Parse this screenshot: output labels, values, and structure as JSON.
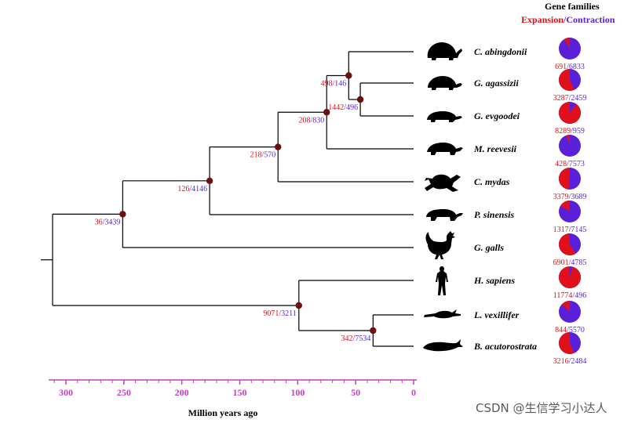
{
  "header": {
    "title": "Gene families",
    "expansion": "Expansion",
    "slash": "/",
    "contraction": "Contraction"
  },
  "colors": {
    "expansion": "#e0101a",
    "contraction": "#5a1fd8",
    "branch": "#000000",
    "node": "#6b0f0f",
    "axis": "#c33fc3"
  },
  "species": [
    {
      "name": "C.  abingdonii",
      "icon": "tortoise-silhouette",
      "exp": "691",
      "con": "6833",
      "pie_exp": 0.09
    },
    {
      "name": "G. agassizii",
      "icon": "desert-tortoise-silhouette",
      "exp": "3287",
      "con": "2459",
      "pie_exp": 0.57
    },
    {
      "name": "G. evgoodei",
      "icon": "flat-turtle-silhouette",
      "exp": "8289",
      "con": "959",
      "pie_exp": 0.9
    },
    {
      "name": "M. reevesii",
      "icon": "pond-turtle-silhouette",
      "exp": "428",
      "con": "7573",
      "pie_exp": 0.05
    },
    {
      "name": "C. mydas",
      "icon": "sea-turtle-silhouette",
      "exp": "3379",
      "con": "3689",
      "pie_exp": 0.48
    },
    {
      "name": "P. sinensis",
      "icon": "softshell-turtle-silhouette",
      "exp": "1317",
      "con": "7145",
      "pie_exp": 0.16
    },
    {
      "name": "G. galls",
      "icon": "rooster-silhouette",
      "exp": "6901",
      "con": "4785",
      "pie_exp": 0.59
    },
    {
      "name": "H. sapiens",
      "icon": "human-silhouette",
      "exp": "11774",
      "con": "496",
      "pie_exp": 0.96
    },
    {
      "name": "L. vexillifer",
      "icon": "river-dolphin-silhouette",
      "exp": "844",
      "con": "5570",
      "pie_exp": 0.13
    },
    {
      "name": "B. acutorostrata",
      "icon": "minke-whale-silhouette",
      "exp": "3216",
      "con": "2484",
      "pie_exp": 0.56
    }
  ],
  "nodes": [
    {
      "id": "n-abingdonii-gopherus",
      "age": 56,
      "exp": "498",
      "con": "146"
    },
    {
      "id": "n-agassizii-evgoodei",
      "age": 46,
      "exp": "1442",
      "con": "496"
    },
    {
      "id": "n-testudinoidea",
      "age": 75,
      "exp": "208",
      "con": "830"
    },
    {
      "id": "n-cryptodira-hard",
      "age": 117,
      "exp": "218",
      "con": "570"
    },
    {
      "id": "n-testudines",
      "age": 176,
      "exp": "126",
      "con": "4146"
    },
    {
      "id": "n-sauropsida",
      "age": 251,
      "exp": "36",
      "con": "3439"
    },
    {
      "id": "n-mammalia",
      "age": 99,
      "exp": "9071",
      "con": "3211"
    },
    {
      "id": "n-cetacea",
      "age": 35,
      "exp": "342",
      "con": "7534"
    }
  ],
  "axis": {
    "ticks": [
      "300",
      "250",
      "200",
      "150",
      "100",
      "50",
      "0"
    ],
    "tick_values": [
      300,
      250,
      200,
      150,
      100,
      50,
      0
    ],
    "label": "Million years ago"
  },
  "watermark": "CSDN @生信学习小达人"
}
